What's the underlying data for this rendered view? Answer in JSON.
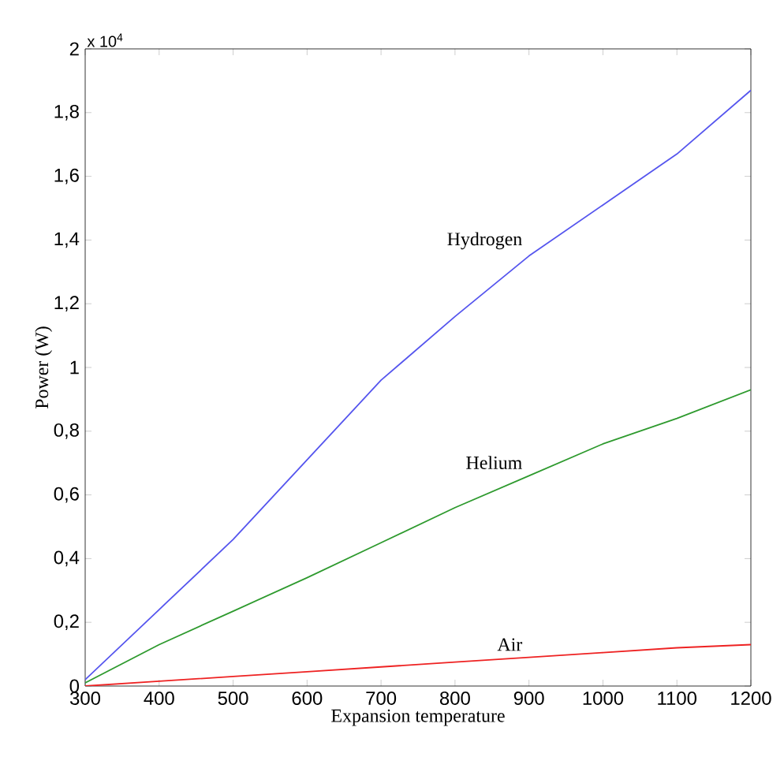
{
  "chart_data": {
    "type": "line",
    "xlabel": "Expansion temperature",
    "ylabel": "Power (W)",
    "annotations": [
      "x 10$^{4}$"
    ],
    "x": [
      300,
      400,
      500,
      600,
      700,
      800,
      900,
      1000,
      1100,
      1200
    ],
    "series": [
      {
        "name": "Hydrogen",
        "color": "#5555ee",
        "values": [
          0.02,
          0.24,
          0.46,
          0.71,
          0.96,
          1.16,
          1.35,
          1.51,
          1.67,
          1.87
        ]
      },
      {
        "name": "Helium",
        "color": "#2e9a2e",
        "values": [
          0.01,
          0.13,
          0.235,
          0.34,
          0.45,
          0.56,
          0.66,
          0.76,
          0.84,
          0.93
        ]
      },
      {
        "name": "Air",
        "color": "#ee2222",
        "values": [
          0,
          0.015,
          0.03,
          0.045,
          0.06,
          0.075,
          0.09,
          0.105,
          0.12,
          0.13
        ]
      }
    ],
    "xlim": [
      300,
      1200
    ],
    "xticks": [
      300,
      400,
      500,
      600,
      700,
      800,
      900,
      1000,
      1100,
      1200
    ],
    "ylim": [
      0,
      2
    ],
    "yticks": [
      0,
      {
        "value": 0.2,
        "label": "0,2"
      },
      {
        "value": 0.4,
        "label": "0,4"
      },
      {
        "value": 0.6,
        "label": "0,6"
      },
      {
        "value": 0.8,
        "label": "0,8"
      },
      1,
      {
        "value": 1.2,
        "label": "1,2"
      },
      {
        "value": 1.4,
        "label": "1,4"
      },
      {
        "value": 1.6,
        "label": "1,6"
      },
      {
        "value": 1.8,
        "label": "1,8"
      },
      2
    ],
    "grid": false,
    "legend": false,
    "marker": "none",
    "line_style": "solid"
  }
}
